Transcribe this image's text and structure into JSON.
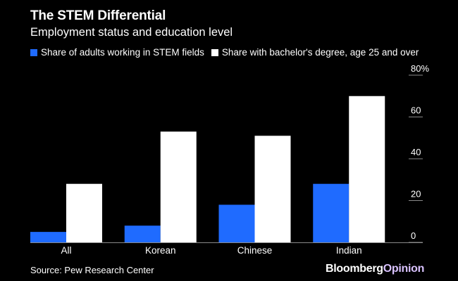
{
  "header": {
    "title": "The STEM Differential",
    "subtitle": "Employment status and education level"
  },
  "legend": {
    "items": [
      {
        "label": "Share of adults working in STEM fields",
        "color": "#1f6bff"
      },
      {
        "label": "Share with bachelor's degree, age 25 and over",
        "color": "#ffffff"
      }
    ]
  },
  "chart_data": {
    "type": "bar",
    "title": "The STEM Differential",
    "subtitle": "Employment status and education level",
    "categories": [
      "All",
      "Korean",
      "Chinese",
      "Indian"
    ],
    "series": [
      {
        "name": "Share of adults working in STEM fields",
        "color": "#1f6bff",
        "values": [
          5,
          8,
          18,
          28
        ]
      },
      {
        "name": "Share with bachelor's degree, age 25 and over",
        "color": "#ffffff",
        "values": [
          28,
          53,
          51,
          70
        ]
      }
    ],
    "y_ticks": [
      0,
      20,
      40,
      60,
      80
    ],
    "y_tick_labels": [
      "0",
      "20",
      "40",
      "60",
      "80%"
    ],
    "ylim": [
      0,
      80
    ],
    "y_axis_position": "right",
    "xlabel": "",
    "ylabel": "",
    "legend_position": "top-left"
  },
  "footer": {
    "source": "Source: Pew Research Center",
    "brand_main": "Bloomberg",
    "brand_accent": "Opinion"
  }
}
